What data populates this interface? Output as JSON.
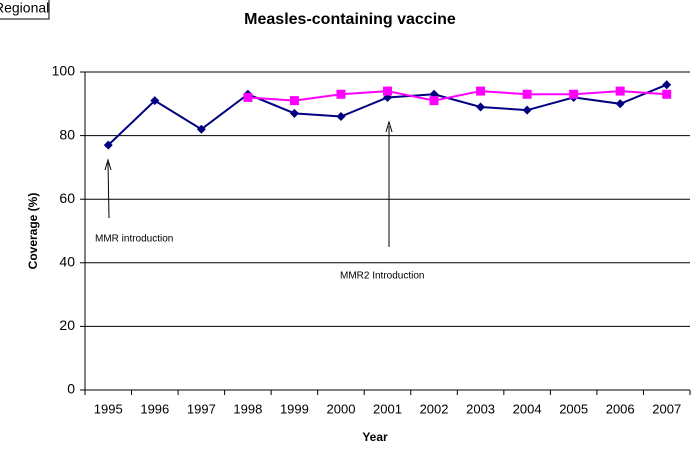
{
  "badge": "Regional",
  "chart_data": {
    "type": "line",
    "title": "Measles-containing vaccine",
    "x_label": "Year",
    "y_label": "Coverage (%)",
    "categories": [
      "1995",
      "1996",
      "1997",
      "1998",
      "1999",
      "2000",
      "2001",
      "2002",
      "2003",
      "2004",
      "2005",
      "2006",
      "2007"
    ],
    "series": [
      {
        "color": "#000080",
        "marker": "diamond",
        "values": [
          77,
          91,
          82,
          93,
          87,
          86,
          92,
          93,
          89,
          88,
          92,
          90,
          96
        ]
      },
      {
        "color": "#ff00ff",
        "marker": "square",
        "values": [
          null,
          null,
          null,
          92,
          91,
          93,
          94,
          91,
          94,
          93,
          93,
          94,
          93
        ]
      }
    ],
    "ylim": [
      0,
      100
    ],
    "yticks": [
      0,
      20,
      40,
      60,
      80,
      100
    ],
    "grid": true,
    "annotations": [
      "MMR introduction",
      "MMR2 Introduction"
    ]
  }
}
